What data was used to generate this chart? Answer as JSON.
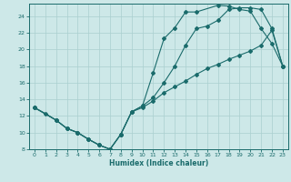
{
  "xlabel": "Humidex (Indice chaleur)",
  "bg_color": "#cde8e8",
  "line_color": "#1a6b6b",
  "grid_color": "#aacfcf",
  "xlim": [
    -0.5,
    23.5
  ],
  "ylim": [
    8,
    25.5
  ],
  "xticks": [
    0,
    1,
    2,
    3,
    4,
    5,
    6,
    7,
    8,
    9,
    10,
    11,
    12,
    13,
    14,
    15,
    16,
    17,
    18,
    19,
    20,
    21,
    22,
    23
  ],
  "yticks": [
    8,
    10,
    12,
    14,
    16,
    18,
    20,
    22,
    24
  ],
  "curve1_x": [
    0,
    1,
    2,
    3,
    4,
    5,
    6,
    7,
    8,
    9,
    10,
    11,
    12,
    13,
    14,
    15,
    17,
    18,
    19,
    20,
    21,
    22,
    23
  ],
  "curve1_y": [
    13,
    12.3,
    11.5,
    10.5,
    10.0,
    9.2,
    8.5,
    8.0,
    9.8,
    12.5,
    13.2,
    17.2,
    21.3,
    22.6,
    24.5,
    24.5,
    25.3,
    25.2,
    24.8,
    24.6,
    22.5,
    20.7,
    18.0
  ],
  "curve2_x": [
    0,
    2,
    3,
    4,
    5,
    6,
    7,
    8,
    9,
    10,
    11,
    12,
    13,
    14,
    15,
    16,
    17,
    18,
    19,
    20,
    21,
    22,
    23
  ],
  "curve2_y": [
    13,
    11.5,
    10.5,
    10.0,
    9.2,
    8.5,
    8.0,
    9.8,
    12.5,
    13.2,
    14.2,
    16.0,
    18.0,
    20.5,
    22.5,
    22.8,
    23.5,
    24.8,
    25.0,
    25.0,
    24.8,
    22.5,
    18.0
  ],
  "curve3_x": [
    0,
    2,
    3,
    4,
    5,
    6,
    7,
    8,
    9,
    10,
    11,
    12,
    13,
    14,
    15,
    16,
    17,
    18,
    19,
    20,
    21,
    22,
    23
  ],
  "curve3_y": [
    13,
    11.5,
    10.5,
    10.0,
    9.2,
    8.5,
    8.0,
    9.8,
    12.5,
    13.0,
    13.8,
    14.8,
    15.5,
    16.2,
    17.0,
    17.7,
    18.2,
    18.8,
    19.3,
    19.8,
    20.5,
    22.3,
    18.0
  ]
}
